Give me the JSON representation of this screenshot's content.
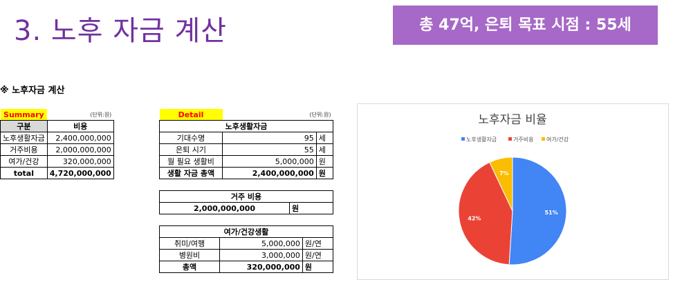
{
  "header": {
    "title": "3. 노후 자금 계산",
    "goal": "총 47억, 은퇴 목표 시점 : 55세"
  },
  "section_title": "※ 노후자금 계산",
  "summary": {
    "tag": "Summary",
    "unit": "(단위:원)",
    "col1": "구분",
    "col2": "비용",
    "rows": [
      {
        "label": "노후생활자금",
        "value": "2,400,000,000"
      },
      {
        "label": "거주비용",
        "value": "2,000,000,000"
      },
      {
        "label": "여가/건강",
        "value": "320,000,000"
      }
    ],
    "total_label": "total",
    "total_value": "4,720,000,000"
  },
  "detail": {
    "tag": "Detail",
    "unit": "(단위:원)",
    "living": {
      "title": "노후생활자금",
      "rows": [
        {
          "label": "기대수명",
          "value": "95",
          "unit": "세"
        },
        {
          "label": "은퇴 시기",
          "value": "55",
          "unit": "세"
        },
        {
          "label": "월 필요 생활비",
          "value": "5,000,000",
          "unit": "원"
        },
        {
          "label": "생활 자금 총액",
          "value": "2,400,000,000",
          "unit": "원"
        }
      ]
    },
    "housing": {
      "title": "거주 비용",
      "value": "2,000,000,000",
      "unit": "원"
    },
    "leisure": {
      "title": "여가/건강생활",
      "rows": [
        {
          "label": "취미/여행",
          "value": "5,000,000",
          "unit": "원/연"
        },
        {
          "label": "병원비",
          "value": "3,000,000",
          "unit": "원/연"
        },
        {
          "label": "총액",
          "value": "320,000,000",
          "unit": "원"
        }
      ]
    }
  },
  "chart_data": {
    "type": "pie",
    "title": "노후자금 비율",
    "legend_position": "top",
    "categories": [
      "노후생활자금",
      "거주비용",
      "여가/건강"
    ],
    "values": [
      51,
      42,
      7
    ],
    "labels": [
      "51%",
      "42%",
      "7%"
    ],
    "colors": [
      "#4285f4",
      "#ea4335",
      "#fbbc04"
    ]
  }
}
